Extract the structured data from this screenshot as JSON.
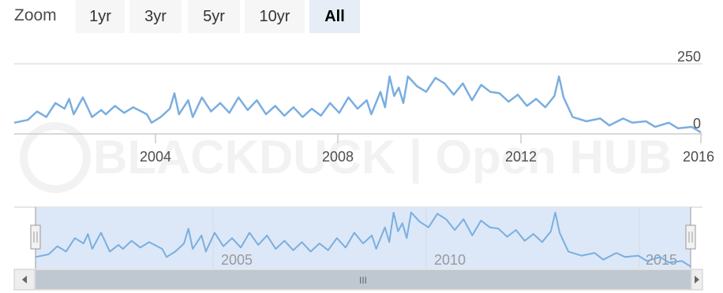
{
  "zoom": {
    "label": "Zoom",
    "buttons": [
      "1yr",
      "3yr",
      "5yr",
      "10yr",
      "All"
    ],
    "selected": "All"
  },
  "watermark": "BLACKDUCK | Open HUB",
  "colors": {
    "line": "#7aaee0",
    "navigator_fill": "#dce8f7",
    "axis": "#cccccc",
    "text": "#4d4d4d"
  },
  "navigator": {
    "tick_labels": [
      "2005",
      "2010",
      "2015"
    ],
    "scrollbar_grip": "III"
  },
  "chart_data": {
    "type": "line",
    "title": "",
    "xlabel": "",
    "ylabel": "",
    "x_range": [
      2001.0,
      2016.0
    ],
    "ylim": [
      0,
      250
    ],
    "y_tick_labels": [
      "0",
      "250"
    ],
    "x_tick_labels": [
      "2004",
      "2008",
      "2012",
      "2016"
    ],
    "grid": true,
    "legend": "none",
    "series": [
      {
        "values": [
          [
            2001.0,
            40
          ],
          [
            2001.3,
            50
          ],
          [
            2001.5,
            80
          ],
          [
            2001.7,
            60
          ],
          [
            2001.9,
            110
          ],
          [
            2002.1,
            90
          ],
          [
            2002.2,
            125
          ],
          [
            2002.3,
            70
          ],
          [
            2002.5,
            130
          ],
          [
            2002.7,
            60
          ],
          [
            2002.9,
            85
          ],
          [
            2003.0,
            70
          ],
          [
            2003.2,
            100
          ],
          [
            2003.4,
            75
          ],
          [
            2003.6,
            95
          ],
          [
            2003.9,
            70
          ],
          [
            2004.0,
            40
          ],
          [
            2004.2,
            60
          ],
          [
            2004.4,
            90
          ],
          [
            2004.5,
            145
          ],
          [
            2004.6,
            70
          ],
          [
            2004.8,
            120
          ],
          [
            2004.9,
            60
          ],
          [
            2005.1,
            130
          ],
          [
            2005.3,
            80
          ],
          [
            2005.5,
            110
          ],
          [
            2005.7,
            75
          ],
          [
            2005.9,
            130
          ],
          [
            2006.1,
            85
          ],
          [
            2006.3,
            120
          ],
          [
            2006.5,
            70
          ],
          [
            2006.7,
            100
          ],
          [
            2006.9,
            65
          ],
          [
            2007.1,
            95
          ],
          [
            2007.3,
            60
          ],
          [
            2007.5,
            90
          ],
          [
            2007.7,
            65
          ],
          [
            2007.9,
            110
          ],
          [
            2008.1,
            75
          ],
          [
            2008.3,
            130
          ],
          [
            2008.5,
            90
          ],
          [
            2008.7,
            120
          ],
          [
            2008.8,
            70
          ],
          [
            2009.0,
            150
          ],
          [
            2009.1,
            95
          ],
          [
            2009.2,
            205
          ],
          [
            2009.3,
            135
          ],
          [
            2009.4,
            165
          ],
          [
            2009.5,
            110
          ],
          [
            2009.6,
            205
          ],
          [
            2009.8,
            170
          ],
          [
            2010.0,
            150
          ],
          [
            2010.2,
            200
          ],
          [
            2010.4,
            180
          ],
          [
            2010.6,
            140
          ],
          [
            2010.8,
            180
          ],
          [
            2011.0,
            120
          ],
          [
            2011.2,
            175
          ],
          [
            2011.4,
            150
          ],
          [
            2011.6,
            145
          ],
          [
            2011.8,
            115
          ],
          [
            2012.0,
            140
          ],
          [
            2012.2,
            100
          ],
          [
            2012.4,
            125
          ],
          [
            2012.6,
            95
          ],
          [
            2012.8,
            135
          ],
          [
            2012.9,
            205
          ],
          [
            2013.0,
            130
          ],
          [
            2013.2,
            60
          ],
          [
            2013.5,
            45
          ],
          [
            2013.8,
            55
          ],
          [
            2014.0,
            30
          ],
          [
            2014.3,
            55
          ],
          [
            2014.5,
            40
          ],
          [
            2014.8,
            45
          ],
          [
            2015.0,
            25
          ],
          [
            2015.3,
            40
          ],
          [
            2015.5,
            20
          ],
          [
            2015.8,
            25
          ],
          [
            2016.0,
            5
          ]
        ]
      }
    ]
  }
}
